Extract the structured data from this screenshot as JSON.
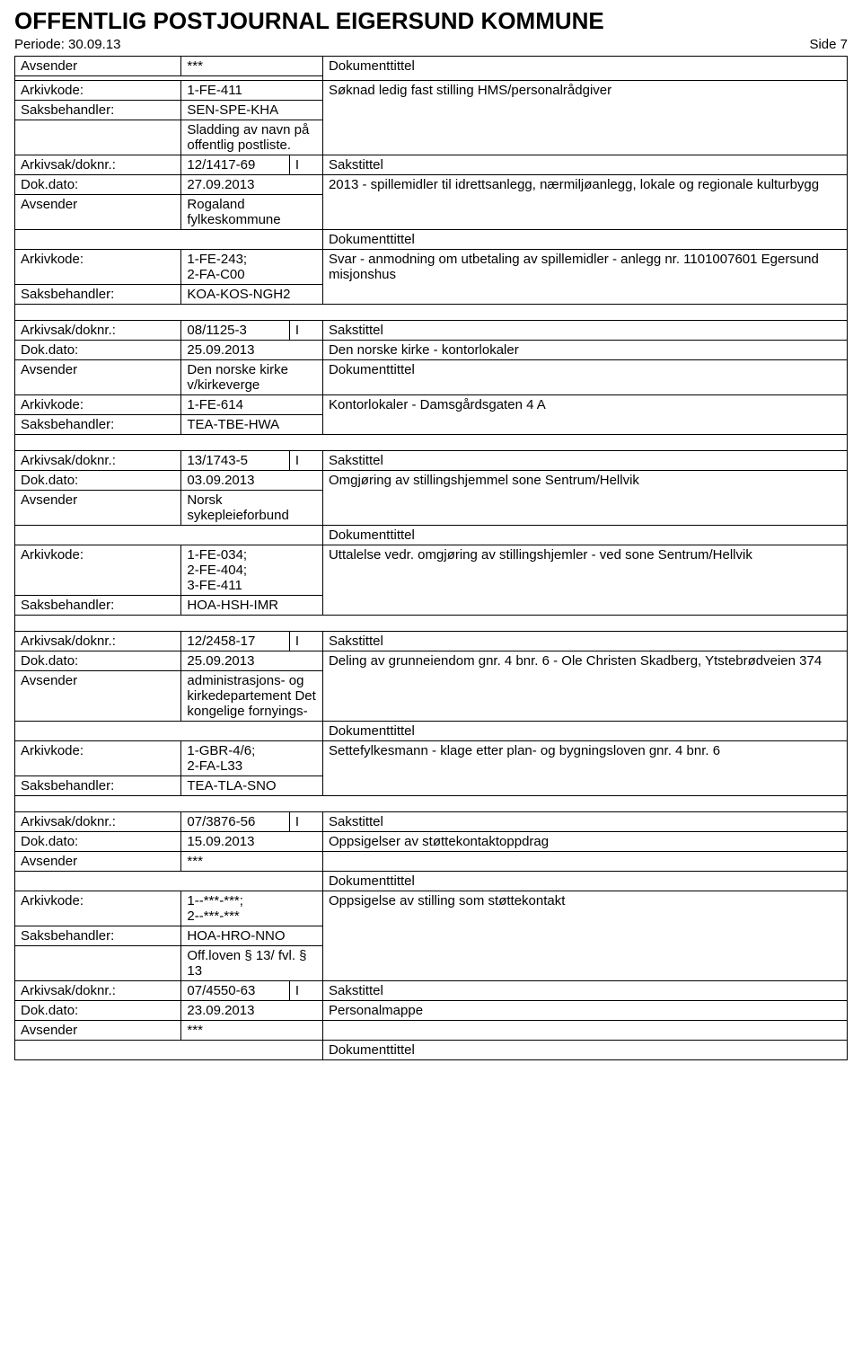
{
  "header": {
    "title": "OFFENTLIG POSTJOURNAL EIGERSUND KOMMUNE",
    "periode_label": "Periode: 30.09.13",
    "side_label": "Side 7"
  },
  "labels": {
    "avsender": "Avsender",
    "arkivkode": "Arkivkode:",
    "saksbehandler": "Saksbehandler:",
    "arkivsak": "Arkivsak/doknr.:",
    "dokdato": "Dok.dato:",
    "sakstittel": "Sakstittel",
    "dokumenttittel": "Dokumenttittel"
  },
  "records": [
    {
      "avsender": "***",
      "arkivkode": "1-FE-411",
      "saksbehandler": "SEN-SPE-KHA",
      "saksb_extra": "Sladding av navn på offentlig postliste.",
      "doktittel": "Søknad ledig fast stilling HMS/personalrådgiver"
    },
    {
      "arkivsak": "12/1417-69",
      "io": "I",
      "dokdato": "27.09.2013",
      "avsender": "Rogaland fylkeskommune",
      "arkivkode": "1-FE-243;\n2-FA-C00",
      "saksbehandler": "KOA-KOS-NGH2",
      "sakstittel": "2013 - spillemidler til idrettsanlegg, nærmiljøanlegg, lokale og regionale kulturbygg",
      "doktittel": "Svar - anmodning om utbetaling av spillemidler - anlegg nr. 1101007601 Egersund misjonshus"
    },
    {
      "arkivsak": "08/1125-3",
      "io": "I",
      "dokdato": "25.09.2013",
      "avsender": "Den norske kirke v/kirkeverge",
      "arkivkode": "1-FE-614",
      "saksbehandler": "TEA-TBE-HWA",
      "sakstittel": "Den norske kirke - kontorlokaler",
      "doktittel": "Kontorlokaler - Damsgårdsgaten 4 A"
    },
    {
      "arkivsak": "13/1743-5",
      "io": "I",
      "dokdato": "03.09.2013",
      "avsender": "Norsk sykepleieforbund",
      "arkivkode": "1-FE-034;\n2-FE-404;\n3-FE-411",
      "saksbehandler": "HOA-HSH-IMR",
      "sakstittel": "Omgjøring av stillingshjemmel sone Sentrum/Hellvik",
      "doktittel": "Uttalelse vedr. omgjøring av stillingshjemler - ved sone Sentrum/Hellvik"
    },
    {
      "arkivsak": "12/2458-17",
      "io": "I",
      "dokdato": "25.09.2013",
      "avsender": "administrasjons- og kirkedepartement Det kongelige fornyings-",
      "arkivkode": "1-GBR-4/6;\n2-FA-L33",
      "saksbehandler": "TEA-TLA-SNO",
      "sakstittel": "Deling av grunneiendom gnr. 4 bnr. 6 - Ole Christen Skadberg, Ytstebrødveien 374",
      "doktittel": "Settefylkesmann - klage etter plan- og bygningsloven gnr. 4 bnr. 6"
    },
    {
      "arkivsak": "07/3876-56",
      "io": "I",
      "dokdato": "15.09.2013",
      "avsender": "***",
      "arkivkode": "1--***-***;\n2--***-***",
      "saksbehandler": "HOA-HRO-NNO",
      "saksb_extra": "Off.loven § 13/ fvl. § 13",
      "sakstittel": "Oppsigelser av støttekontaktoppdrag",
      "doktittel": "Oppsigelse av stilling som støttekontakt"
    },
    {
      "arkivsak": "07/4550-63",
      "io": "I",
      "dokdato": "23.09.2013",
      "avsender": "***",
      "sakstittel": "Personalmappe"
    }
  ]
}
